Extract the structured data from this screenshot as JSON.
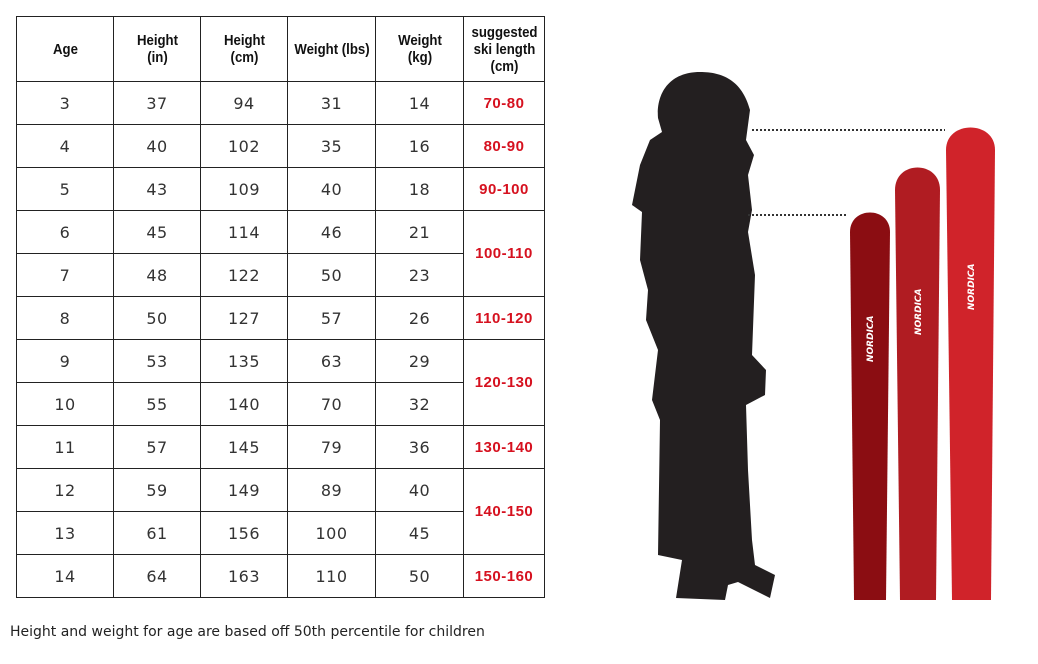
{
  "headers": [
    "Age",
    "Height (in)",
    "Height (cm)",
    "Weight (lbs)",
    "Weight (kg)",
    "suggested ski length (cm)"
  ],
  "rows": [
    {
      "age": "3",
      "in": "37",
      "cm": "94",
      "lbs": "31",
      "kg": "14",
      "ski": "70-80"
    },
    {
      "age": "4",
      "in": "40",
      "cm": "102",
      "lbs": "35",
      "kg": "16",
      "ski": "80-90"
    },
    {
      "age": "5",
      "in": "43",
      "cm": "109",
      "lbs": "40",
      "kg": "18",
      "ski": "90-100"
    },
    {
      "age": "6",
      "in": "45",
      "cm": "114",
      "lbs": "46",
      "kg": "21",
      "ski": "100-110"
    },
    {
      "age": "7",
      "in": "48",
      "cm": "122",
      "lbs": "50",
      "kg": "23"
    },
    {
      "age": "8",
      "in": "50",
      "cm": "127",
      "lbs": "57",
      "kg": "26",
      "ski": "110-120"
    },
    {
      "age": "9",
      "in": "53",
      "cm": "135",
      "lbs": "63",
      "kg": "29",
      "ski": "120-130"
    },
    {
      "age": "10",
      "in": "55",
      "cm": "140",
      "lbs": "70",
      "kg": "32"
    },
    {
      "age": "11",
      "in": "57",
      "cm": "145",
      "lbs": "79",
      "kg": "36",
      "ski": "130-140"
    },
    {
      "age": "12",
      "in": "59",
      "cm": "149",
      "lbs": "89",
      "kg": "40",
      "ski": "140-150"
    },
    {
      "age": "13",
      "in": "61",
      "cm": "156",
      "lbs": "100",
      "kg": "45"
    },
    {
      "age": "14",
      "in": "64",
      "cm": "163",
      "lbs": "110",
      "kg": "50",
      "ski": "150-160"
    }
  ],
  "note": "Height and weight for age are based off 50th percentile for children",
  "ski_logo": "NORDICA",
  "colors": {
    "accent": "#d6111f",
    "ski_short": "#8b0d12",
    "ski_mid": "#b01c22",
    "ski_long": "#d0232a"
  }
}
